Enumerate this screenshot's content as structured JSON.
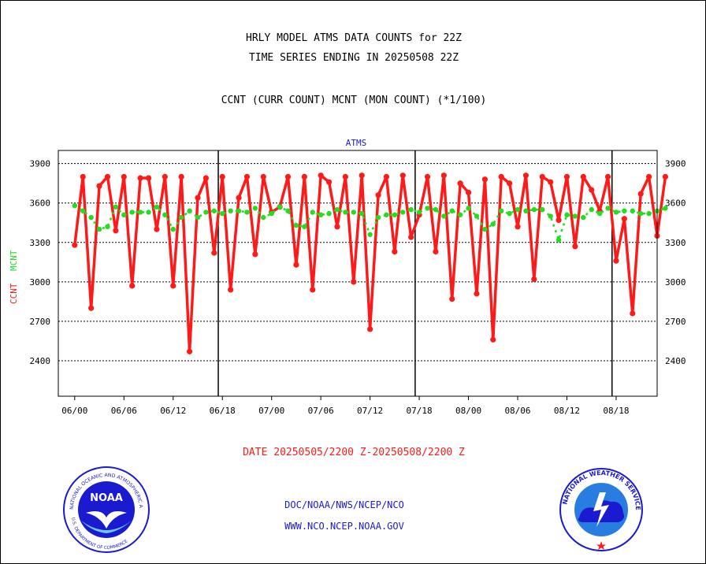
{
  "header": {
    "title_line1": "HRLY MODEL ATMS DATA COUNTS for 22Z",
    "title_line2": "TIME SERIES ENDING IN 20250508 22Z",
    "subtitle": "CCNT (CURR COUNT) MCNT (MON COUNT) (*1/100)"
  },
  "footer": {
    "date_range": "DATE 20250505/2200 Z-20250508/2200 Z",
    "link1": "DOC/NOAA/NWS/NCEP/NCO",
    "link2": "WWW.NCO.NCEP.NOAA.GOV",
    "noaa_logo_text": "NOAA",
    "noaa_ring_text": "NATIONAL OCEANIC AND ATMOSPHERIC ADMINISTRATION",
    "noaa_ring_bottom": "U.S. DEPARTMENT OF COMMERCE",
    "nws_ring_text": "NATIONAL WEATHER SERVICE"
  },
  "colors": {
    "ccnt": "#ff1a1a",
    "mcnt": "#22dd22",
    "title": "#1a1ad0",
    "date": "#ff1a1a"
  },
  "chart_data": {
    "type": "line",
    "title": "ATMS",
    "ylabel_left": "CCNT",
    "ylabel_right": "MCNT",
    "ylim": [
      2130,
      4000
    ],
    "yticks": [
      2400,
      2700,
      3000,
      3300,
      3600,
      3900
    ],
    "xlim": [
      -2,
      71
    ],
    "xticks": [
      {
        "x": 0,
        "label": "06/00"
      },
      {
        "x": 6,
        "label": "06/06"
      },
      {
        "x": 12,
        "label": "06/12"
      },
      {
        "x": 18,
        "label": "06/18"
      },
      {
        "x": 24,
        "label": "07/00"
      },
      {
        "x": 30,
        "label": "07/06"
      },
      {
        "x": 36,
        "label": "07/12"
      },
      {
        "x": 42,
        "label": "07/18"
      },
      {
        "x": 48,
        "label": "08/00"
      },
      {
        "x": 54,
        "label": "08/06"
      },
      {
        "x": 60,
        "label": "08/12"
      },
      {
        "x": 66,
        "label": "08/18"
      }
    ],
    "day_boundaries": [
      17.5,
      41.5,
      65.5
    ],
    "grid": true,
    "series": [
      {
        "name": "CCNT",
        "values": [
          3280,
          3800,
          2800,
          3730,
          3800,
          3390,
          3800,
          2970,
          3790,
          3790,
          3400,
          3800,
          2970,
          3800,
          2470,
          3640,
          3790,
          3220,
          3800,
          2940,
          3640,
          3800,
          3210,
          3800,
          3530,
          3570,
          3800,
          3130,
          3800,
          2940,
          3810,
          3760,
          3420,
          3800,
          3000,
          3810,
          2640,
          3660,
          3800,
          3230,
          3810,
          3340,
          3510,
          3800,
          3230,
          3810,
          2870,
          3750,
          3680,
          2910,
          3780,
          2560,
          3800,
          3750,
          3420,
          3810,
          3020,
          3800,
          3760,
          3470,
          3800,
          3270,
          3800,
          3700,
          3540,
          3800,
          3160,
          3480,
          2760,
          3670,
          3800,
          3350,
          3800
        ]
      },
      {
        "name": "MCNT",
        "values": [
          3580,
          3540,
          3490,
          3400,
          3420,
          3570,
          3510,
          3530,
          3530,
          3530,
          3570,
          3510,
          3400,
          3490,
          3540,
          3490,
          3530,
          3540,
          3520,
          3540,
          3540,
          3530,
          3560,
          3490,
          3520,
          3570,
          3540,
          3430,
          3420,
          3530,
          3510,
          3520,
          3550,
          3530,
          3530,
          3520,
          3360,
          3490,
          3510,
          3510,
          3530,
          3550,
          3530,
          3560,
          3550,
          3500,
          3540,
          3510,
          3560,
          3500,
          3400,
          3440,
          3540,
          3520,
          3550,
          3540,
          3550,
          3550,
          3500,
          3320,
          3510,
          3500,
          3490,
          3550,
          3520,
          3560,
          3530,
          3540,
          3540,
          3520,
          3520,
          3540,
          3560
        ]
      }
    ]
  }
}
